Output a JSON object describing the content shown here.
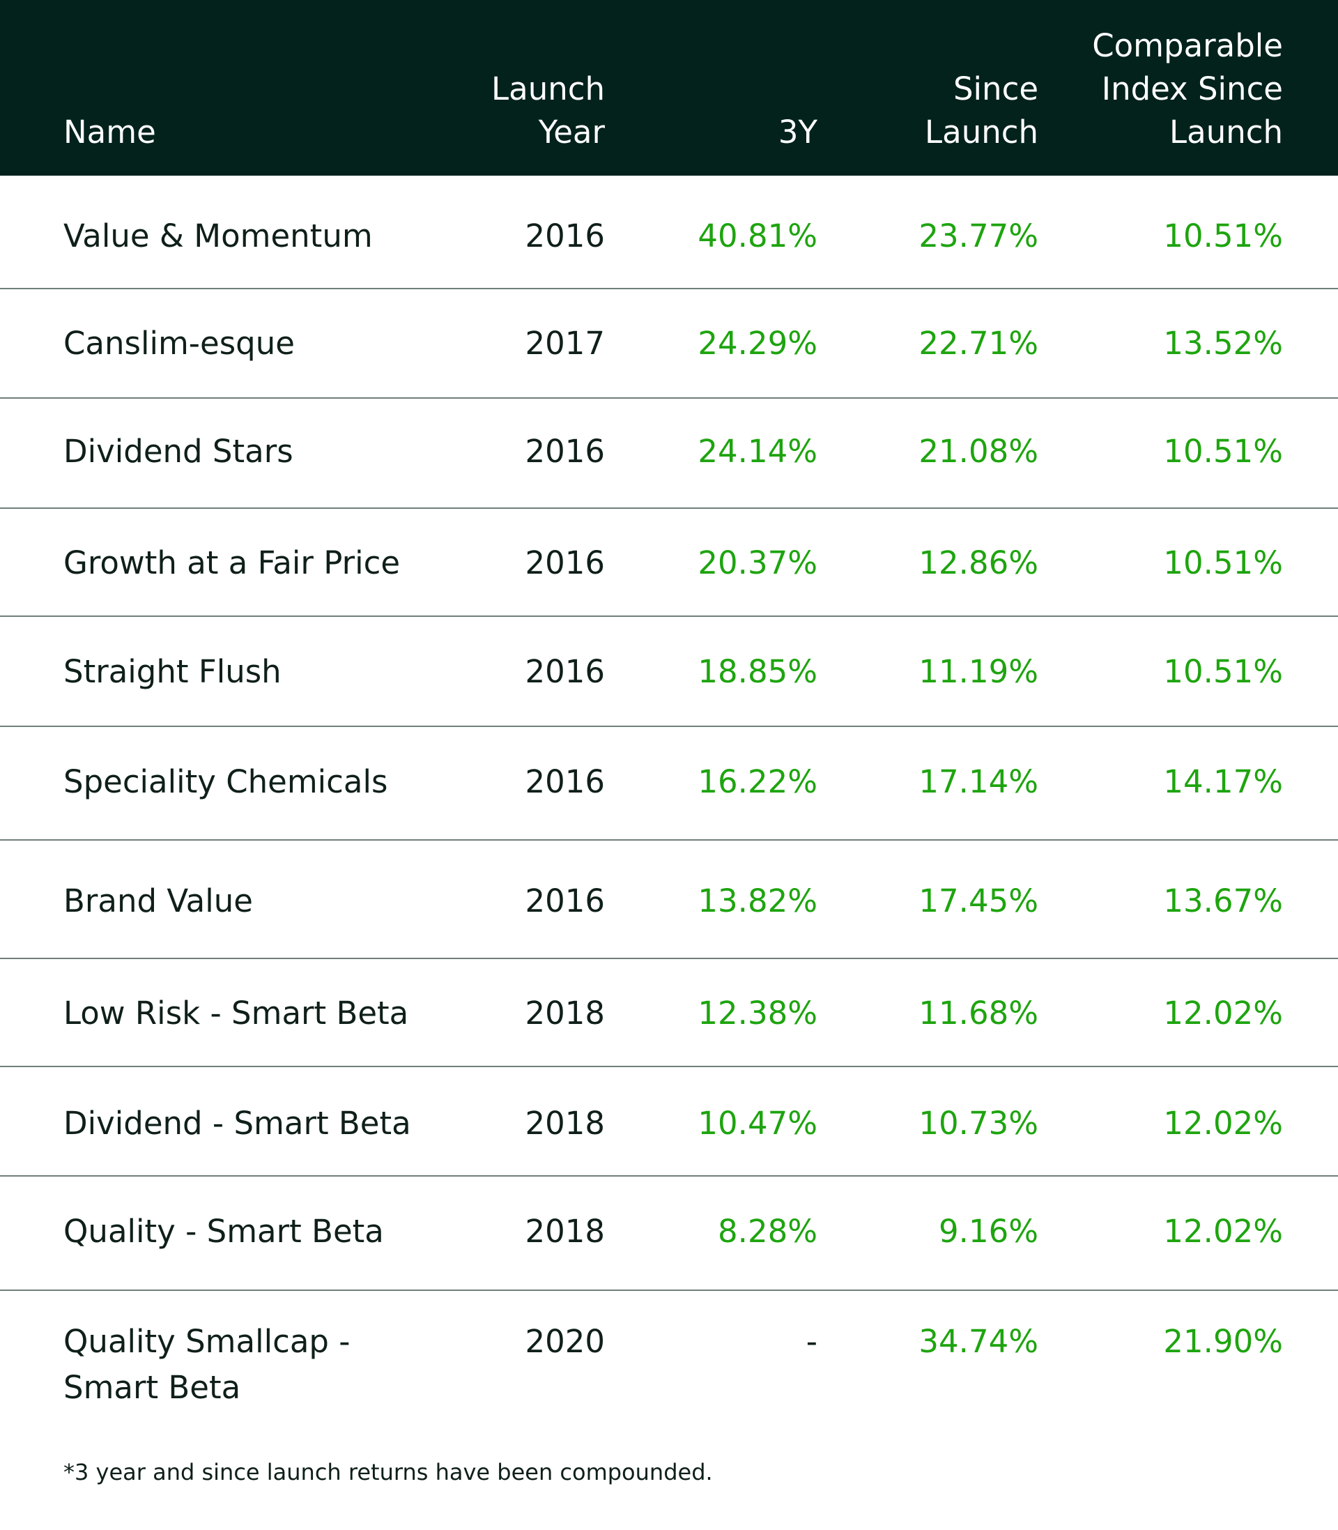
{
  "header": {
    "name": "Name",
    "launch_year": "Launch\nYear",
    "three_y": "3Y",
    "since_launch": "Since\nLaunch",
    "comparable": "Comparable\nIndex Since\nLaunch"
  },
  "rows": [
    {
      "name": "Value & Momentum",
      "year": "2016",
      "three_y": "40.81%",
      "since": "23.77%",
      "comp": "10.51%"
    },
    {
      "name": "Canslim-esque",
      "year": "2017",
      "three_y": "24.29%",
      "since": "22.71%",
      "comp": "13.52%"
    },
    {
      "name": "Dividend Stars",
      "year": "2016",
      "three_y": "24.14%",
      "since": "21.08%",
      "comp": "10.51%"
    },
    {
      "name": "Growth at a Fair Price",
      "year": "2016",
      "three_y": "20.37%",
      "since": "12.86%",
      "comp": "10.51%"
    },
    {
      "name": "Straight Flush",
      "year": "2016",
      "three_y": "18.85%",
      "since": "11.19%",
      "comp": "10.51%"
    },
    {
      "name": "Speciality Chemicals",
      "year": "2016",
      "three_y": "16.22%",
      "since": "17.14%",
      "comp": "14.17%"
    },
    {
      "name": "Brand Value",
      "year": "2016",
      "three_y": "13.82%",
      "since": "17.45%",
      "comp": "13.67%"
    },
    {
      "name": "Low Risk - Smart Beta",
      "year": "2018",
      "three_y": "12.38%",
      "since": "11.68%",
      "comp": "12.02%"
    },
    {
      "name": "Dividend - Smart Beta",
      "year": "2018",
      "three_y": "10.47%",
      "since": "10.73%",
      "comp": "12.02%"
    },
    {
      "name": "Quality - Smart Beta",
      "year": "2018",
      "three_y": "8.28%",
      "since": "9.16%",
      "comp": "12.02%"
    },
    {
      "name": "Quality Smallcap -\nSmart Beta",
      "year": "2020",
      "three_y": "-",
      "since": "34.74%",
      "comp": "21.90%"
    }
  ],
  "footnote": "*3 year and since launch returns have been compounded.",
  "colors": {
    "header_bg": "#03221c",
    "positive": "#1ea40f",
    "text": "#0f1f1a",
    "divider": "#6f7f7a"
  }
}
